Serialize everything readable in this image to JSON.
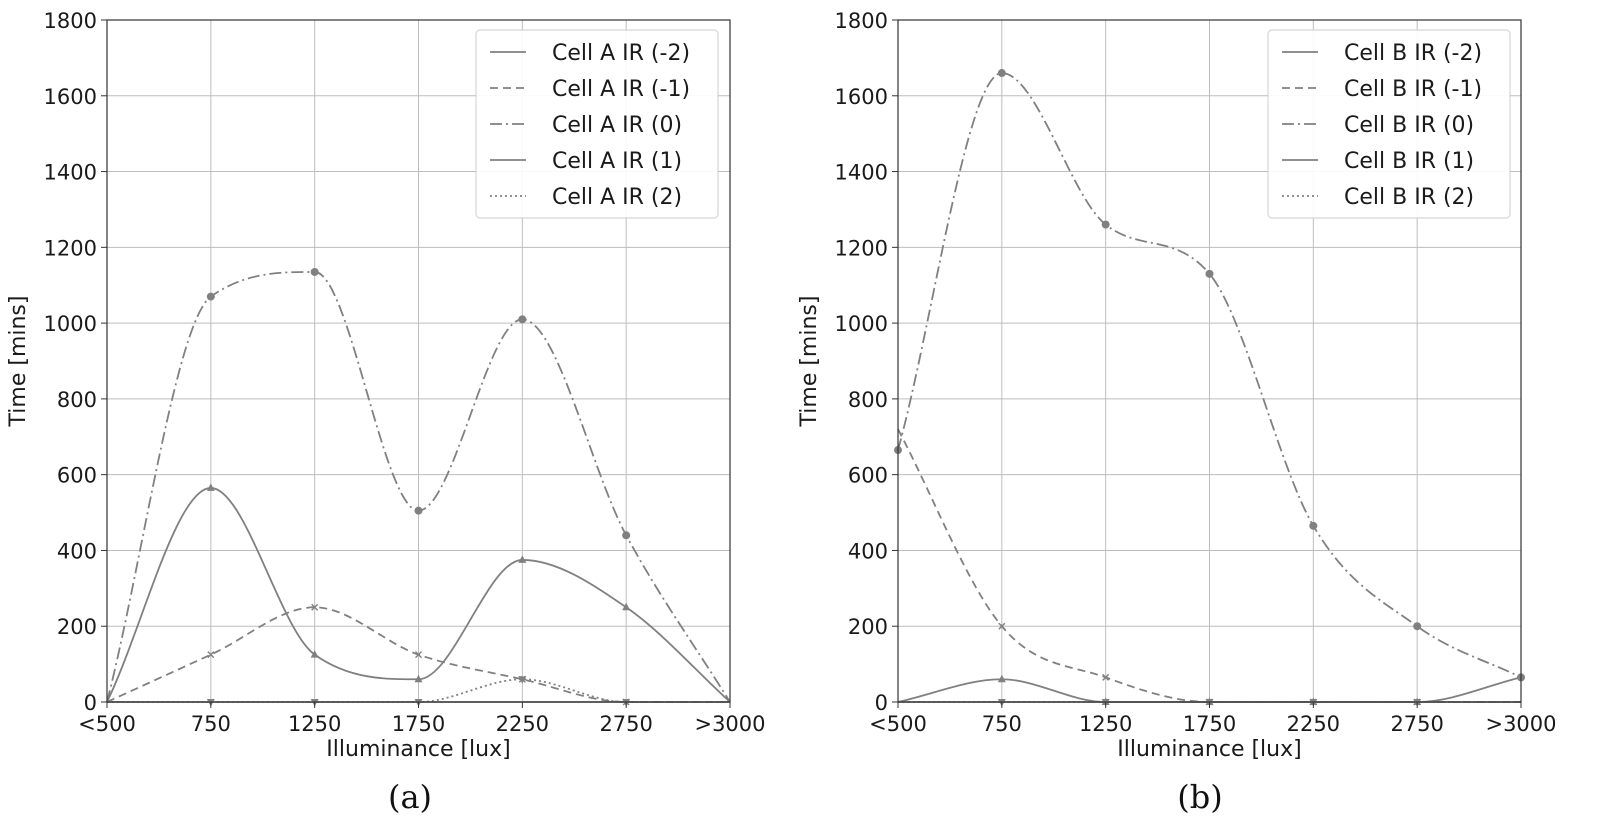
{
  "colors": {
    "series": "#808080",
    "grid": "#bdbdbd",
    "axis": "#333333",
    "legend_border": "#cccccc"
  },
  "chart_data": [
    {
      "type": "line",
      "caption": "(a)",
      "xlabel": "Illuminance [lux]",
      "ylabel": "Time [mins]",
      "categories": [
        "<500",
        "750",
        "1250",
        "1750",
        "2250",
        "2750",
        ">3000"
      ],
      "ylim": [
        0,
        1800
      ],
      "yticks": [
        "0",
        "200",
        "400",
        "600",
        "800",
        "1000",
        "1200",
        "1400",
        "1600",
        "1800"
      ],
      "grid": true,
      "legend_position": "top-right",
      "series": [
        {
          "name": "Cell A IR (-2)",
          "style": "solid",
          "marker": "none",
          "values": [
            0,
            0,
            0,
            0,
            0,
            0,
            0
          ]
        },
        {
          "name": "Cell A IR (-1)",
          "style": "dashed",
          "marker": "x",
          "values": [
            0,
            125,
            250,
            125,
            60,
            0,
            0
          ]
        },
        {
          "name": "Cell A IR (0)",
          "style": "dashdot",
          "marker": "circle",
          "values": [
            0,
            1070,
            1135,
            505,
            1010,
            440,
            0
          ]
        },
        {
          "name": "Cell A IR (1)",
          "style": "solid",
          "marker": "triangle-up",
          "values": [
            0,
            565,
            125,
            60,
            375,
            250,
            0
          ]
        },
        {
          "name": "Cell A IR (2)",
          "style": "dotted",
          "marker": "triangle-down",
          "values": [
            0,
            0,
            0,
            0,
            60,
            0,
            0
          ]
        }
      ]
    },
    {
      "type": "line",
      "caption": "(b)",
      "xlabel": "Illuminance [lux]",
      "ylabel": "Time [mins]",
      "categories": [
        "<500",
        "750",
        "1250",
        "1750",
        "2250",
        "2750",
        ">3000"
      ],
      "ylim": [
        0,
        1800
      ],
      "yticks": [
        "0",
        "200",
        "400",
        "600",
        "800",
        "1000",
        "1200",
        "1400",
        "1600",
        "1800"
      ],
      "grid": true,
      "legend_position": "top-right",
      "series": [
        {
          "name": "Cell B IR (-2)",
          "style": "solid",
          "marker": "none",
          "values": [
            0,
            0,
            0,
            0,
            0,
            0,
            0
          ]
        },
        {
          "name": "Cell B IR (-1)",
          "style": "dashed",
          "marker": "x",
          "values": [
            720,
            200,
            65,
            0,
            0,
            0,
            0
          ]
        },
        {
          "name": "Cell B IR (0)",
          "style": "dashdot",
          "marker": "circle",
          "values": [
            665,
            1660,
            1260,
            1130,
            465,
            200,
            65
          ]
        },
        {
          "name": "Cell B IR (1)",
          "style": "solid",
          "marker": "triangle-up",
          "values": [
            0,
            60,
            0,
            0,
            0,
            0,
            65
          ]
        },
        {
          "name": "Cell B IR (2)",
          "style": "dotted",
          "marker": "triangle-down",
          "values": [
            0,
            0,
            0,
            0,
            0,
            0,
            0
          ]
        }
      ]
    }
  ]
}
